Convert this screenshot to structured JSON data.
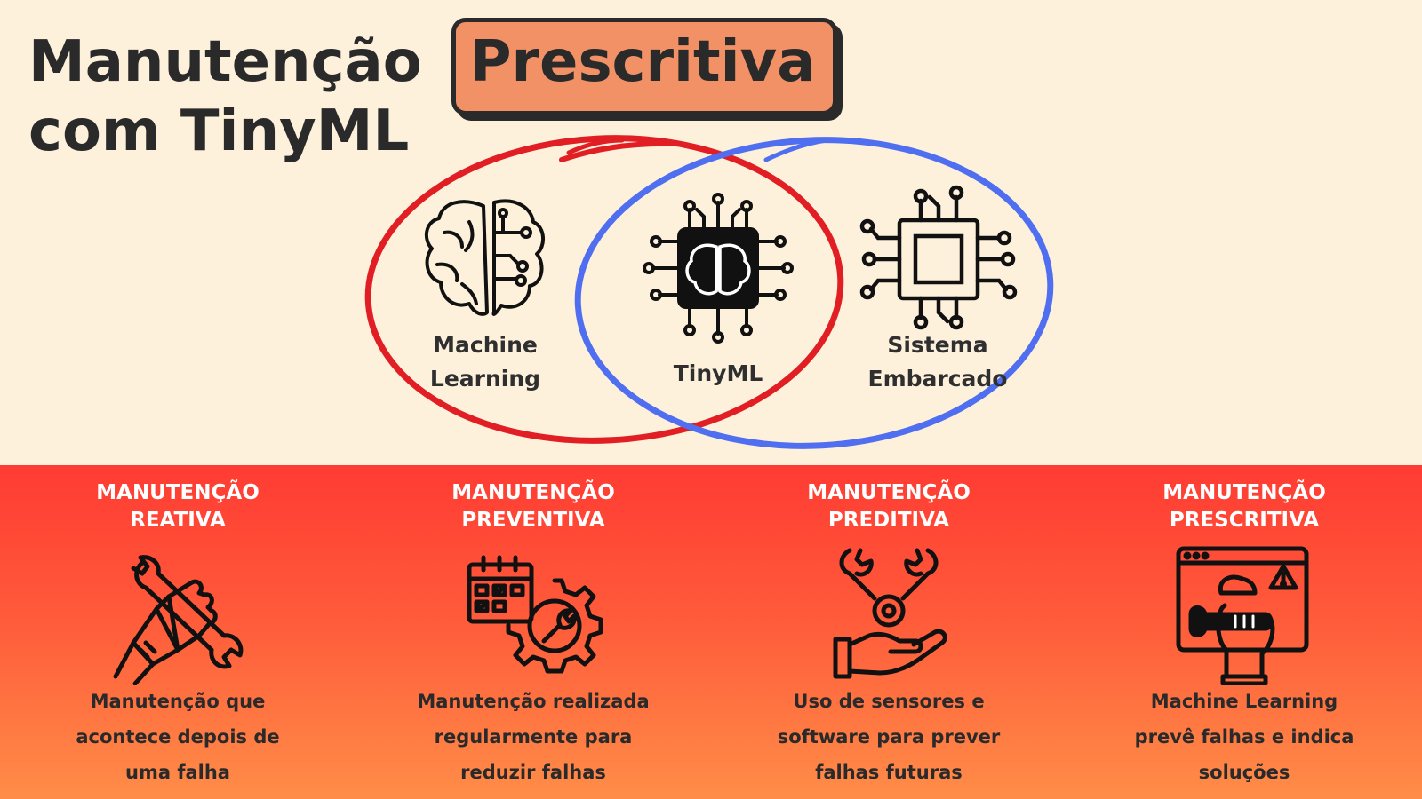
{
  "title": {
    "line1": "Manutenção",
    "highlight": "Prescritiva",
    "line2": "com TinyML"
  },
  "venn": {
    "left": {
      "line1": "Machine",
      "line2": "Learning",
      "icon": "brain-circuit-icon"
    },
    "center": {
      "label": "TinyML",
      "icon": "chip-brain-icon"
    },
    "right": {
      "line1": "Sistema",
      "line2": "Embarcado",
      "icon": "microchip-icon"
    },
    "colors": {
      "left_circle": "#E01E24",
      "right_circle": "#4F6EF0"
    }
  },
  "types": [
    {
      "title1": "MANUTENÇÃO",
      "title2": "REATIVA",
      "icon": "hand-wrench-icon",
      "desc1": "Manutenção que",
      "desc2": "acontece depois de",
      "desc3": "uma falha"
    },
    {
      "title1": "MANUTENÇÃO",
      "title2": "PREVENTIVA",
      "icon": "calendar-gear-icon",
      "desc1": "Manutenção realizada",
      "desc2": "regularmente para",
      "desc3": "reduzir falhas"
    },
    {
      "title1": "MANUTENÇÃO",
      "title2": "PREDITIVA",
      "icon": "hand-wrenches-icon",
      "desc1": "Uso de sensores e",
      "desc2": "software para prever",
      "desc3": "falhas futuras"
    },
    {
      "title1": "MANUTENÇÃO",
      "title2": "PRESCRITIVA",
      "icon": "browser-repair-icon",
      "desc1": "Machine Learning",
      "desc2": "prevê falhas e indica",
      "desc3": "soluções"
    }
  ],
  "colors": {
    "background": "#FDF1DC",
    "highlight": "#F39166",
    "band_top": "#FF3B33",
    "band_bottom": "#FF8D48"
  }
}
